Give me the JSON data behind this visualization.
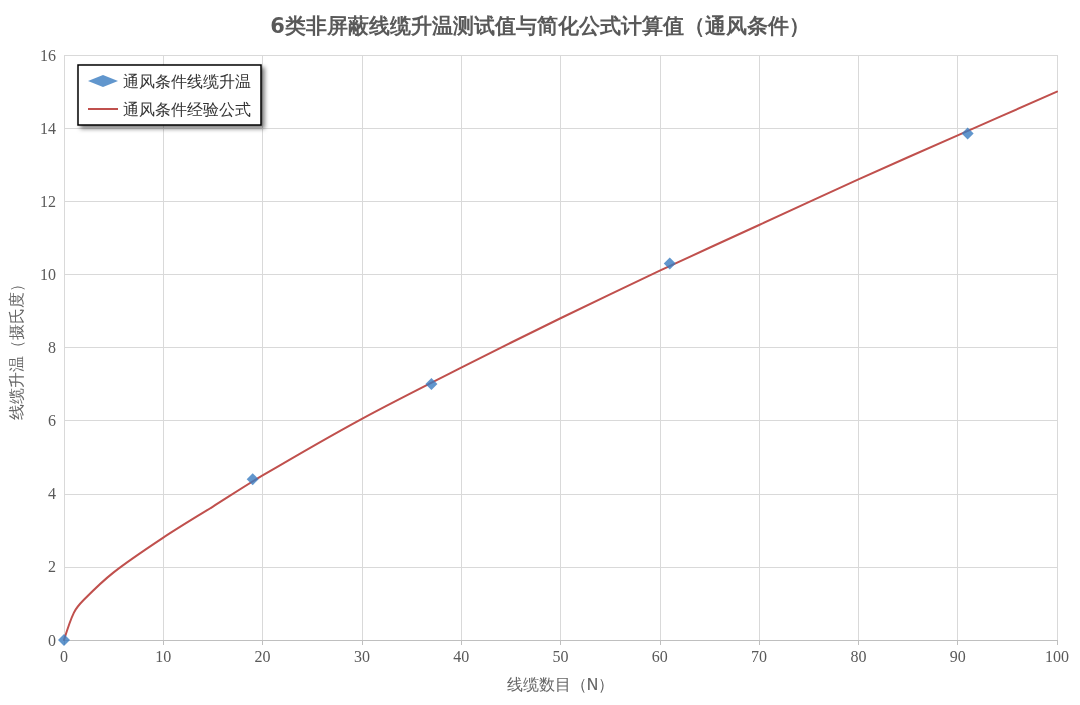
{
  "chart_data": {
    "type": "scatter",
    "title": "6类非屏蔽线缆升温测试值与简化公式计算值（通风条件）",
    "xlabel": "线缆数目（N）",
    "ylabel": "线缆升温（摄氏度）",
    "xlim": [
      0,
      100
    ],
    "xticks": [
      0,
      10,
      20,
      30,
      40,
      50,
      60,
      70,
      80,
      90,
      100
    ],
    "ylim": [
      0,
      16
    ],
    "yticks": [
      0,
      2,
      4,
      6,
      8,
      10,
      12,
      14,
      16
    ],
    "grid": true,
    "legend": "top left",
    "series": [
      {
        "name": "通风条件线缆升温",
        "marker": "diamond",
        "color": "#3a7cc0",
        "x": [
          0,
          19,
          37,
          61,
          91
        ],
        "values": [
          0,
          4.4,
          7.0,
          10.3,
          13.85
        ]
      },
      {
        "name": "通风条件经验公式",
        "type": "line",
        "marker": "none",
        "line_style": "solid",
        "color": "#c0504d",
        "x": [
          0,
          1,
          2,
          5,
          10,
          15,
          20,
          30,
          40,
          50,
          60,
          70,
          80,
          90,
          100
        ],
        "values": [
          0,
          0.75,
          1.1,
          1.85,
          2.8,
          3.65,
          4.5,
          6.05,
          7.45,
          8.8,
          10.1,
          11.35,
          12.6,
          13.8,
          15
        ]
      }
    ]
  }
}
